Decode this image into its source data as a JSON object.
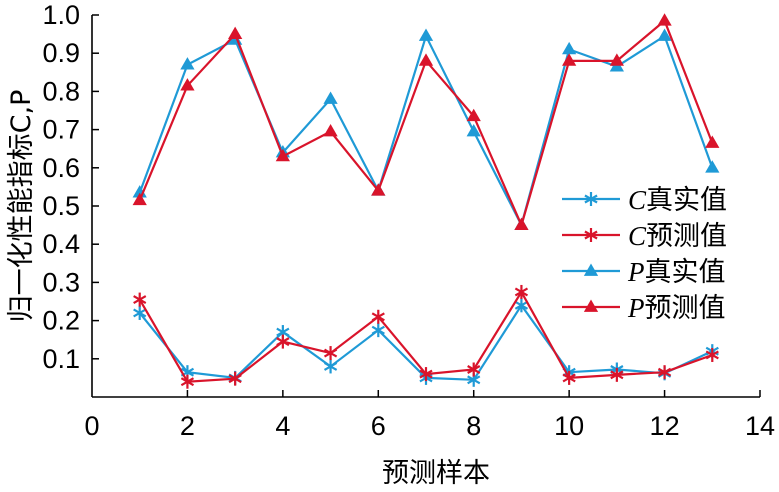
{
  "chart_data": {
    "type": "line",
    "xlabel": "预测样本",
    "ylabel": "归一化性能指标C,P",
    "xlim": [
      0,
      14
    ],
    "ylim": [
      0,
      1.0
    ],
    "xticks": [
      "0",
      "2",
      "4",
      "6",
      "8",
      "10",
      "12",
      "14"
    ],
    "yticks": [
      "0.1",
      "0.2",
      "0.3",
      "0.4",
      "0.5",
      "0.6",
      "0.7",
      "0.8",
      "0.9",
      "1.0"
    ],
    "grid": false,
    "legend_position": "right",
    "x": [
      1,
      2,
      3,
      4,
      5,
      6,
      7,
      8,
      9,
      10,
      11,
      12,
      13
    ],
    "series": [
      {
        "name": "C真实值",
        "var": "C",
        "suffix": "真实值",
        "color": "#1f9ad6",
        "marker": "asterisk",
        "values": [
          0.22,
          0.065,
          0.05,
          0.17,
          0.08,
          0.175,
          0.05,
          0.045,
          0.24,
          0.065,
          0.072,
          0.062,
          0.12
        ]
      },
      {
        "name": "C预测值",
        "var": "C",
        "suffix": "预测值",
        "color": "#d9142b",
        "marker": "asterisk",
        "values": [
          0.255,
          0.04,
          0.048,
          0.145,
          0.115,
          0.21,
          0.06,
          0.072,
          0.275,
          0.05,
          0.058,
          0.065,
          0.11
        ]
      },
      {
        "name": "P真实值",
        "var": "P",
        "suffix": "真实值",
        "color": "#1f9ad6",
        "marker": "triangle",
        "values": [
          0.535,
          0.87,
          0.935,
          0.64,
          0.78,
          0.54,
          0.945,
          0.695,
          0.45,
          0.91,
          0.865,
          0.945,
          0.6
        ]
      },
      {
        "name": "P预测值",
        "var": "P",
        "suffix": "预测值",
        "color": "#d9142b",
        "marker": "triangle",
        "values": [
          0.515,
          0.815,
          0.95,
          0.63,
          0.695,
          0.54,
          0.88,
          0.735,
          0.45,
          0.88,
          0.88,
          0.985,
          0.665
        ]
      }
    ]
  }
}
